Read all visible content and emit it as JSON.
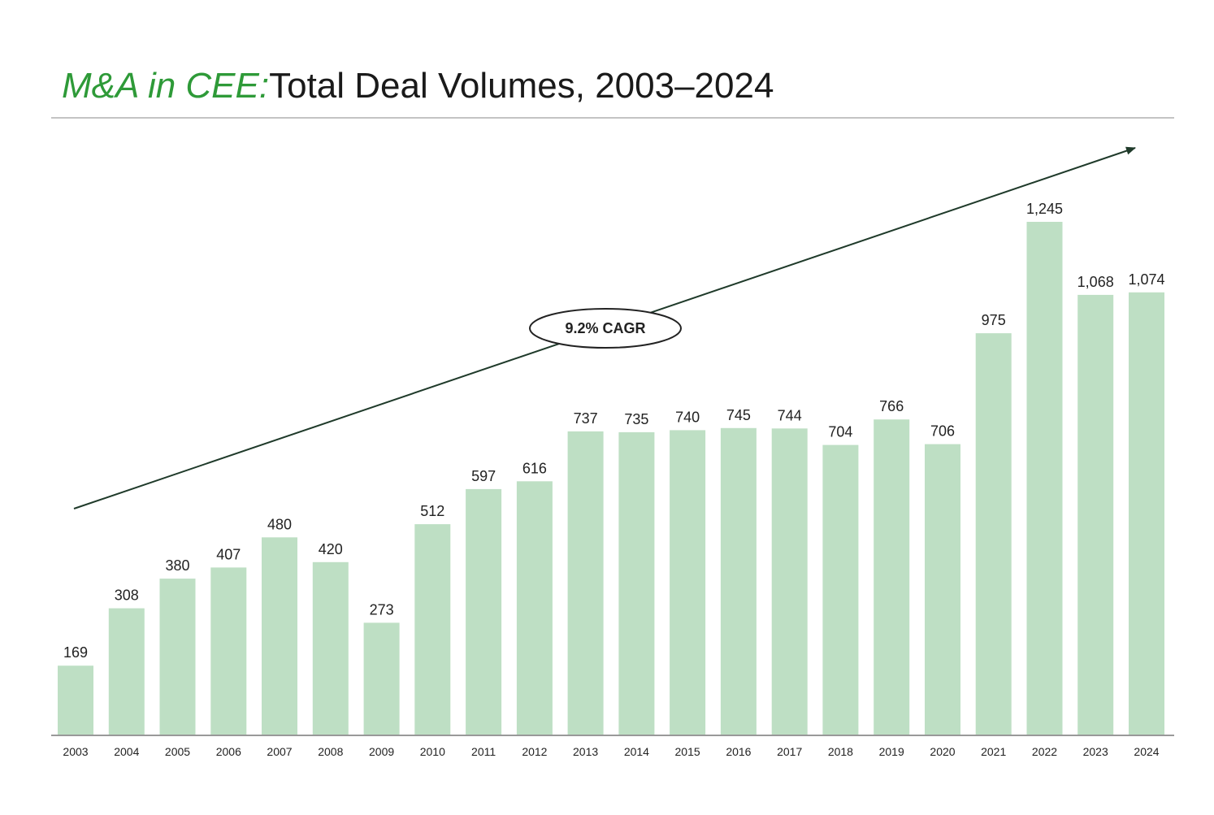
{
  "header": {
    "title_prefix": "M&A in CEE:",
    "title_main": "Total Deal Volumes, 2003–2024"
  },
  "colors": {
    "bar": "#bedfc4",
    "accent": "#2e9a38",
    "axis": "#999999"
  },
  "chart_data": {
    "type": "bar",
    "title": "Total Deal Volumes, 2003–2024",
    "categories": [
      "2003",
      "2004",
      "2005",
      "2006",
      "2007",
      "2008",
      "2009",
      "2010",
      "2011",
      "2012",
      "2013",
      "2014",
      "2015",
      "2016",
      "2017",
      "2018",
      "2019",
      "2020",
      "2021",
      "2022",
      "2023",
      "2024"
    ],
    "values": [
      169,
      308,
      380,
      407,
      480,
      420,
      273,
      512,
      597,
      616,
      737,
      735,
      740,
      745,
      744,
      704,
      766,
      706,
      975,
      1245,
      1068,
      1074
    ],
    "value_labels": [
      "169",
      "308",
      "380",
      "407",
      "480",
      "420",
      "273",
      "512",
      "597",
      "616",
      "737",
      "735",
      "740",
      "745",
      "744",
      "704",
      "766",
      "706",
      "975",
      "1,245",
      "1,068",
      "1,074"
    ],
    "xlabel": "",
    "ylabel": "",
    "ylim": [
      0,
      1245
    ],
    "grid": false,
    "legend": "none",
    "annotation": {
      "label": "9.2% CAGR",
      "type": "trend-arrow"
    }
  }
}
